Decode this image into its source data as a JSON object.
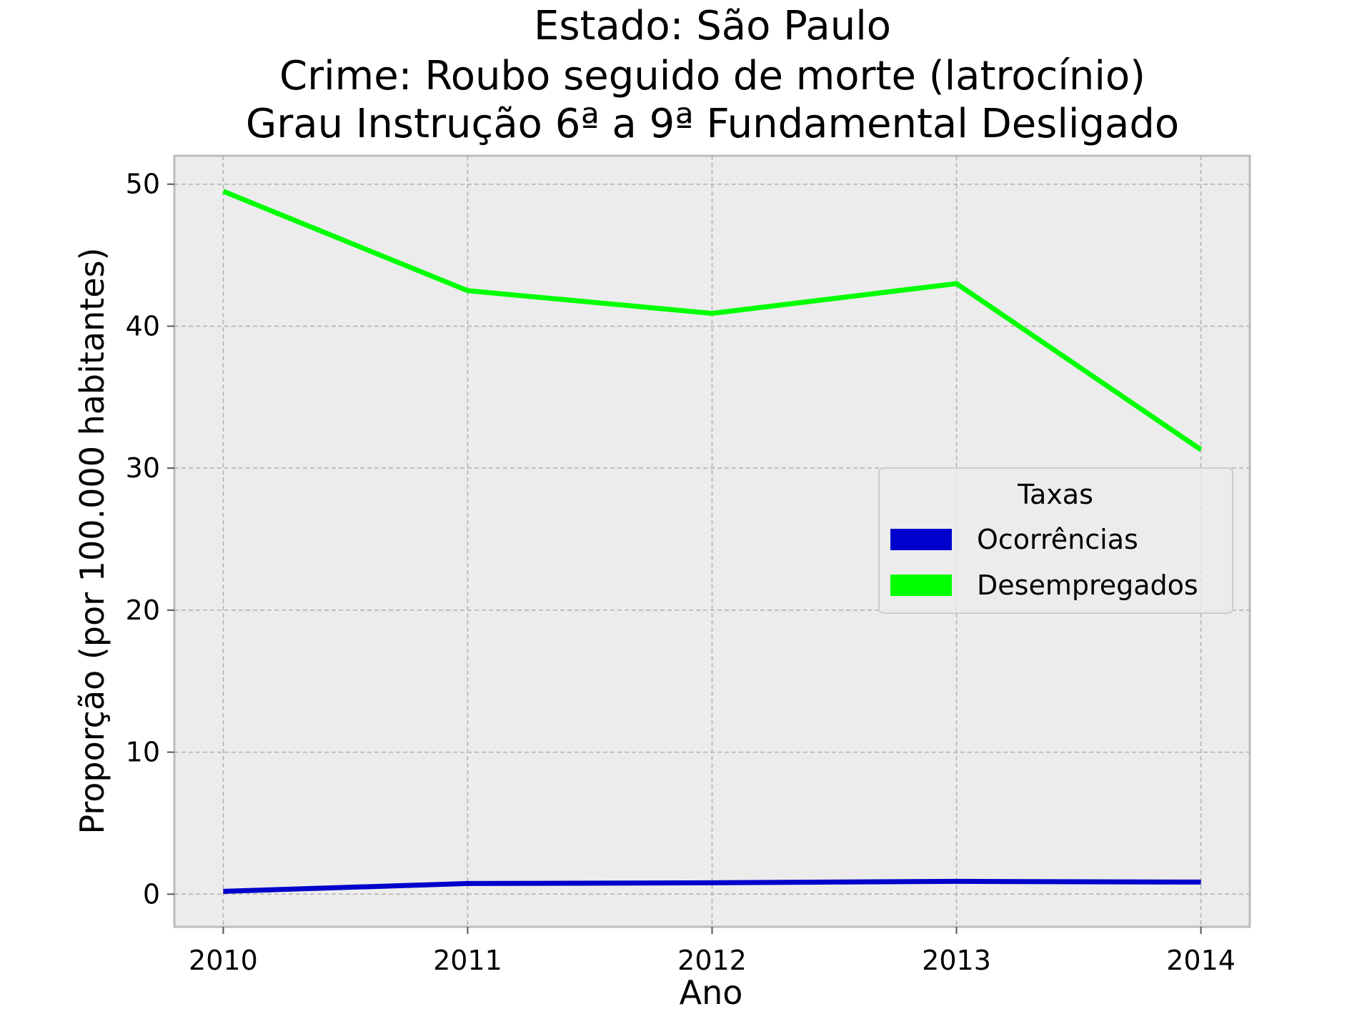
{
  "chart_data": {
    "type": "line",
    "title": [
      "Estado: São Paulo",
      "Crime: Roubo seguido de morte (latrocínio)",
      "Grau Instrução  6ª a 9ª Fundamental   Desligado"
    ],
    "xlabel": "Ano",
    "ylabel": "Proporção (por 100.000 habitantes)",
    "x": [
      2010,
      2011,
      2012,
      2013,
      2014
    ],
    "x_tick_labels": [
      "2010",
      "2011",
      "2012",
      "2013",
      "2014"
    ],
    "y_ticks": [
      0,
      10,
      20,
      30,
      40,
      50
    ],
    "y_tick_labels": [
      "0",
      "10",
      "20",
      "30",
      "40",
      "50"
    ],
    "xlim": [
      2009.8,
      2014.2
    ],
    "ylim": [
      -2.3,
      52.0
    ],
    "grid": true,
    "legend": {
      "title": "Taxas",
      "placement": "center-right"
    },
    "series": [
      {
        "name": "Ocorrências",
        "color": "#0000cc",
        "values": [
          0.2,
          0.75,
          0.8,
          0.9,
          0.85
        ]
      },
      {
        "name": "Desempregados",
        "color": "#00ff00",
        "values": [
          49.5,
          42.5,
          40.9,
          43.0,
          31.3
        ]
      }
    ],
    "colors": {
      "plot_background": "#ececec",
      "grid": "#b0b0b0",
      "frame": "#bcbcbc"
    }
  }
}
